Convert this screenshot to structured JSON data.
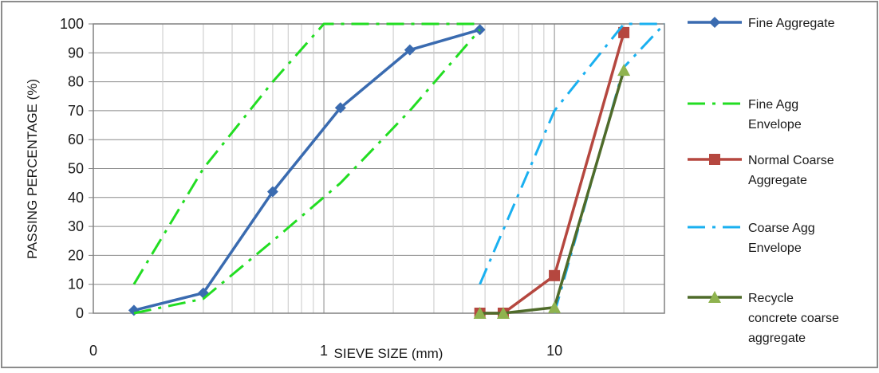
{
  "chart_data": {
    "type": "line",
    "x_scale": "log",
    "xlabel": "SIEVE SIZE (mm)",
    "ylabel": "PASSING PERCENTAGE (%)",
    "xlim": [
      0.1,
      30
    ],
    "ylim": [
      0,
      100
    ],
    "x_tick_labels": [
      {
        "value": 0.1,
        "label": "0"
      },
      {
        "value": 1,
        "label": "1"
      },
      {
        "value": 10,
        "label": "10"
      }
    ],
    "y_ticks": [
      0,
      10,
      20,
      30,
      40,
      50,
      60,
      70,
      80,
      90,
      100
    ],
    "grid": true,
    "legend_position": "right",
    "series": [
      {
        "name": "Fine Aggregate",
        "color": "#3a6bb0",
        "style": "solid",
        "marker": "diamond",
        "points": [
          [
            0.15,
            1
          ],
          [
            0.3,
            7
          ],
          [
            0.6,
            42
          ],
          [
            1.18,
            71
          ],
          [
            2.36,
            91
          ],
          [
            4.75,
            98
          ]
        ]
      },
      {
        "name": "Fine Agg Envelope",
        "color": "#22dd22",
        "style": "dashdot",
        "marker": "none",
        "points": [
          [
            0.15,
            10
          ],
          [
            0.3,
            50
          ],
          [
            0.6,
            80
          ],
          [
            1.0,
            100
          ],
          [
            4.75,
            100
          ]
        ]
      },
      {
        "name": "Fine Agg Envelope lower",
        "color": "#22dd22",
        "style": "dashdot",
        "marker": "none",
        "points": [
          [
            0.15,
            0
          ],
          [
            0.3,
            5
          ],
          [
            0.6,
            25
          ],
          [
            1.18,
            45
          ],
          [
            2.36,
            70
          ],
          [
            4.75,
            98
          ]
        ]
      },
      {
        "name": "Normal Coarse Aggregate",
        "color": "#b5473f",
        "style": "solid",
        "marker": "square",
        "points": [
          [
            4.75,
            0
          ],
          [
            6.0,
            0
          ],
          [
            10.0,
            13
          ],
          [
            20.0,
            97
          ]
        ]
      },
      {
        "name": "Coarse Agg Envelope",
        "color": "#1ab0f0",
        "style": "dashdot",
        "marker": "none",
        "points": [
          [
            4.75,
            10
          ],
          [
            10.0,
            70
          ],
          [
            20.0,
            100
          ],
          [
            30.0,
            100
          ]
        ]
      },
      {
        "name": "Coarse Agg Envelope lower",
        "color": "#1ab0f0",
        "style": "dashdot",
        "marker": "none",
        "points": [
          [
            10.0,
            0
          ],
          [
            20.0,
            85
          ],
          [
            30.0,
            100
          ]
        ]
      },
      {
        "name": "Recycle concrete coarse aggregate",
        "color": "#4f6b2a",
        "marker_color": "#8fb34f",
        "style": "solid",
        "marker": "triangle",
        "points": [
          [
            4.75,
            0
          ],
          [
            6.0,
            0
          ],
          [
            10.0,
            2
          ],
          [
            20.0,
            84
          ]
        ]
      }
    ]
  },
  "legend": [
    {
      "lines": [
        "Fine Aggregate"
      ],
      "series_index": 0
    },
    {
      "lines": [
        "Fine Agg",
        "Envelope"
      ],
      "series_index": 1
    },
    {
      "lines": [
        "Normal Coarse",
        "Aggregate"
      ],
      "series_index": 3
    },
    {
      "lines": [
        "Coarse Agg",
        "Envelope"
      ],
      "series_index": 4
    },
    {
      "lines": [
        "Recycle",
        "concrete coarse",
        "aggregate"
      ],
      "series_index": 6
    }
  ]
}
